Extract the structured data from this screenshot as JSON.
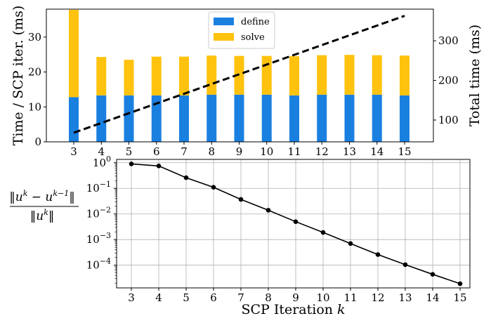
{
  "chart_data": [
    {
      "type": "bar",
      "stacked": true,
      "categories": [
        "3",
        "4",
        "5",
        "6",
        "7",
        "8",
        "9",
        "10",
        "11",
        "12",
        "13",
        "14",
        "15"
      ],
      "series": [
        {
          "name": "define",
          "color": "#1a80e0",
          "values": [
            12.8,
            13.3,
            13.3,
            13.3,
            13.3,
            13.5,
            13.5,
            13.5,
            13.3,
            13.5,
            13.5,
            13.5,
            13.3
          ]
        },
        {
          "name": "solve",
          "color": "#ffc20e",
          "values": [
            25.0,
            11.0,
            10.2,
            11.1,
            11.1,
            11.2,
            11.1,
            11.1,
            11.2,
            11.3,
            11.4,
            11.3,
            11.4
          ]
        }
      ],
      "line_series": {
        "axis": "right",
        "style": "dashed",
        "color": "#000000",
        "x": [
          3,
          15
        ],
        "y": [
          68,
          363
        ]
      },
      "ylabel": "Time / SCP iter. (ms)",
      "ylabel_right": "Total time (ms)",
      "ylim": [
        0,
        38
      ],
      "ylim_right": [
        45,
        380
      ],
      "yticks": [
        "0",
        "10",
        "20",
        "30"
      ],
      "yticks_right": [
        "100",
        "200",
        "300"
      ],
      "legend": {
        "position": "top-center",
        "entries": [
          "define",
          "solve"
        ]
      },
      "grid": false
    },
    {
      "type": "line",
      "scale": "log",
      "x": [
        3,
        4,
        5,
        6,
        7,
        8,
        9,
        10,
        11,
        12,
        13,
        14,
        15
      ],
      "y": [
        0.9,
        0.75,
        0.26,
        0.11,
        0.037,
        0.014,
        0.005,
        0.0019,
        0.0007,
        0.00026,
        0.000105,
        4.4e-05,
        1.9e-05
      ],
      "color": "#000000",
      "marker": "circle",
      "xlabel_main": "SCP Iteration",
      "xlabel_var": "k",
      "xticks": [
        "3",
        "4",
        "5",
        "6",
        "7",
        "8",
        "9",
        "10",
        "11",
        "12",
        "13",
        "14",
        "15"
      ],
      "ylabel": {
        "numerator": "‖u^k − u^{k−1}‖",
        "denominator": "‖u^k‖"
      },
      "ylim": [
        1.3e-05,
        1.35
      ],
      "ytick_exponents": [
        "0",
        "−1",
        "−2",
        "−3",
        "−4"
      ],
      "ytick_base": "10",
      "grid": true
    }
  ]
}
